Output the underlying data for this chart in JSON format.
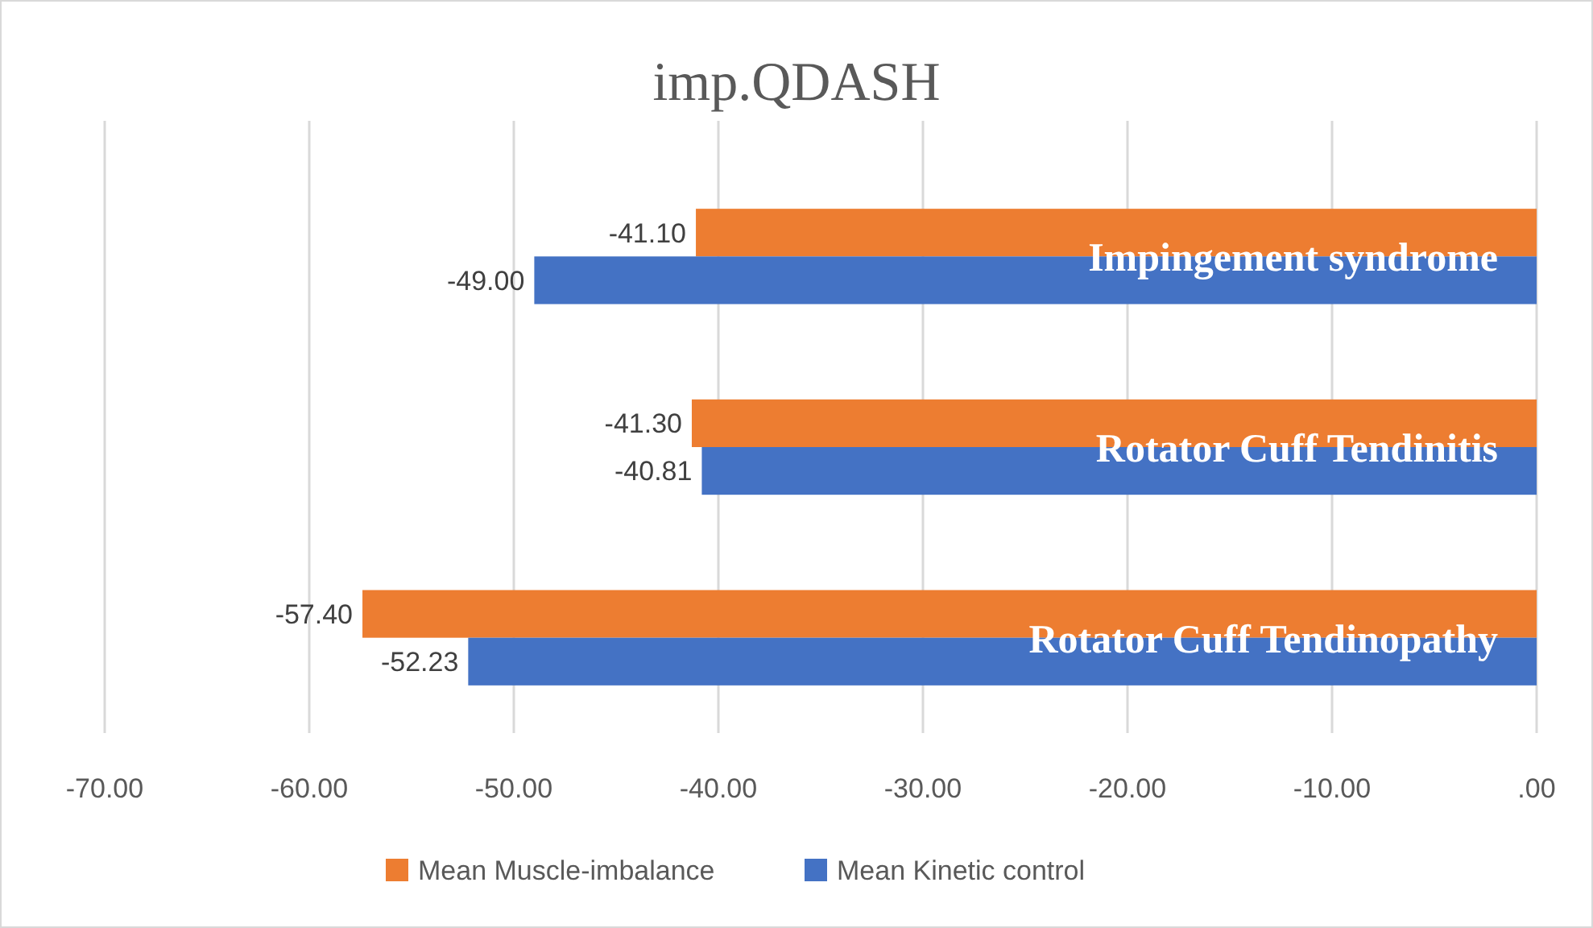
{
  "chart_data": {
    "type": "bar",
    "orientation": "horizontal",
    "title": "imp.QDASH",
    "categories": [
      "Impingement syndrome",
      "Rotator Cuff Tendinitis",
      "Rotator Cuff Tendinopathy"
    ],
    "series": [
      {
        "name": "Mean Muscle-imbalance",
        "color": "#ed7d31",
        "values": [
          -41.1,
          -41.3,
          -57.4
        ],
        "value_labels": [
          "-41.10",
          "-41.30",
          "-57.40"
        ]
      },
      {
        "name": "Mean Kinetic control",
        "color": "#4472c4",
        "values": [
          -49.0,
          -40.81,
          -52.23
        ],
        "value_labels": [
          "-49.00",
          "-40.81",
          "-52.23"
        ]
      }
    ],
    "xlim": [
      -70,
      0
    ],
    "xticks": [
      {
        "value": -70,
        "label": "-70.00"
      },
      {
        "value": -60,
        "label": "-60.00"
      },
      {
        "value": -50,
        "label": "-50.00"
      },
      {
        "value": -40,
        "label": "-40.00"
      },
      {
        "value": -30,
        "label": "-30.00"
      },
      {
        "value": -20,
        "label": "-20.00"
      },
      {
        "value": -10,
        "label": "-10.00"
      },
      {
        "value": 0,
        "label": ".00"
      }
    ],
    "grid": "x",
    "legend": "bottom"
  }
}
